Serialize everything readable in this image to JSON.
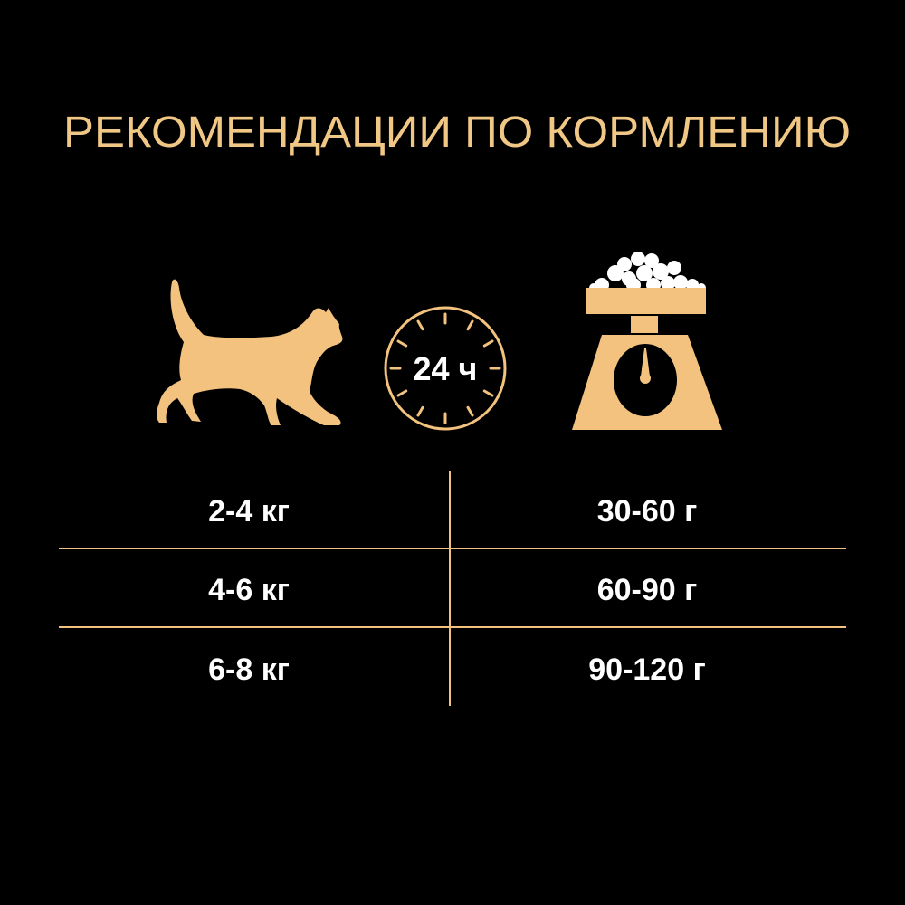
{
  "title": "РЕКОМЕНДАЦИИ ПО КОРМЛЕНИЮ",
  "colors": {
    "accent": "#F4C27F",
    "title": "#F0C785",
    "text": "#FFFFFF",
    "background": "#000000"
  },
  "icons": {
    "cat": "cat-icon",
    "clock": "clock-icon",
    "scale": "kitchen-scale-icon"
  },
  "clock_label": "24 ч",
  "table": {
    "rows": [
      {
        "weight": "2-4 кг",
        "portion": "30-60 г"
      },
      {
        "weight": "4-6 кг",
        "portion": "60-90 г"
      },
      {
        "weight": "6-8 кг",
        "portion": "90-120 г"
      }
    ]
  }
}
